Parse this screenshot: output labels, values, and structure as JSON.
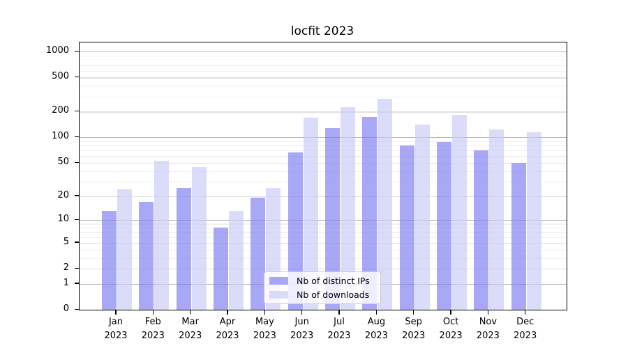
{
  "chart_data": {
    "type": "bar",
    "title": "locfit 2023",
    "scale": "log1p",
    "categories": [
      "Jan",
      "Feb",
      "Mar",
      "Apr",
      "May",
      "Jun",
      "Jul",
      "Aug",
      "Sep",
      "Oct",
      "Nov",
      "Dec"
    ],
    "year_label": "2023",
    "series": [
      {
        "name": "Nb of distinct IPs",
        "color": "rgba(121,121,243,0.65)",
        "values": [
          13,
          17,
          25,
          8,
          19,
          67,
          128,
          175,
          80,
          88,
          70,
          50
        ]
      },
      {
        "name": "Nb of downloads",
        "color": "rgba(200,200,247,0.65)",
        "values": [
          24,
          53,
          45,
          13,
          25,
          170,
          225,
          285,
          140,
          185,
          125,
          115
        ]
      }
    ],
    "xlabel": "",
    "ylabel": "",
    "y_ticks": [
      0,
      1,
      2,
      5,
      10,
      20,
      50,
      100,
      200,
      500,
      1000
    ],
    "y_minor_ticks": [
      3,
      4,
      6,
      7,
      8,
      9,
      30,
      40,
      60,
      70,
      80,
      90,
      300,
      400,
      600,
      700,
      800,
      900
    ],
    "ylim": [
      0,
      1280
    ],
    "grid": true,
    "legend_position": "lower center",
    "colors": {
      "grid_major": "#b4b4b4",
      "grid_mid": "#e0e0e0",
      "grid_minor": "#f1f1f1",
      "axis": "#000000",
      "background": "#ffffff"
    }
  },
  "legend": {
    "items": [
      {
        "label": "Nb of distinct IPs"
      },
      {
        "label": "Nb of downloads"
      }
    ]
  }
}
